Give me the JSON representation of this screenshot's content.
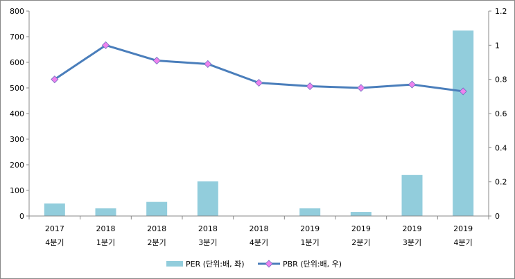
{
  "chart_data": {
    "type": "bar+line",
    "categories": [
      [
        "2017",
        "4분기"
      ],
      [
        "2018",
        "1분기"
      ],
      [
        "2018",
        "2분기"
      ],
      [
        "2018",
        "3분기"
      ],
      [
        "2018",
        "4분기"
      ],
      [
        "2019",
        "1분기"
      ],
      [
        "2019",
        "2분기"
      ],
      [
        "2019",
        "3분기"
      ],
      [
        "2019",
        "4분기"
      ]
    ],
    "series": [
      {
        "name": "PER (단위:배, 좌)",
        "type": "bar",
        "axis": "left",
        "color": "#92CDDC",
        "values": [
          49,
          30,
          55,
          135,
          0,
          30,
          16,
          160,
          724
        ]
      },
      {
        "name": "PBR (단위:배, 우)",
        "type": "line",
        "axis": "right",
        "color": "#4A7EBB",
        "marker_color": "#EE82EE",
        "values": [
          0.8,
          1.0,
          0.91,
          0.89,
          0.78,
          0.76,
          0.75,
          0.77,
          0.73
        ]
      }
    ],
    "y_left": {
      "range": [
        0,
        800
      ],
      "ticks": [
        "0",
        "100",
        "200",
        "300",
        "400",
        "500",
        "600",
        "700",
        "800"
      ]
    },
    "y_right": {
      "range": [
        0,
        1.2
      ],
      "ticks": [
        "0",
        "0.2",
        "0.4",
        "0.6",
        "0.8",
        "1",
        "1.2"
      ]
    },
    "grid": false,
    "legend": "bottom"
  }
}
